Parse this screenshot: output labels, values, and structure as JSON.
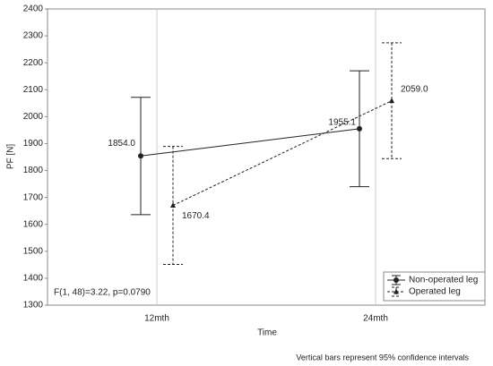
{
  "chart_data": {
    "type": "errorbar-line",
    "x_label": "Time",
    "y_label": "PF [N]",
    "categories": [
      "12mth",
      "24mth"
    ],
    "series": [
      {
        "name": "Non-operated leg",
        "color": "#222222",
        "line_style": "solid",
        "marker": "circle",
        "values": [
          1854.0,
          1955.1
        ],
        "value_labels": [
          "1854.0",
          "1955.1"
        ],
        "errors": [
          218,
          215
        ]
      },
      {
        "name": "Operated leg",
        "color": "#222222",
        "line_style": "dotted",
        "marker": "triangle",
        "values": [
          1670.4,
          2059.0
        ],
        "value_labels": [
          "1670.4",
          "2059.0"
        ],
        "errors": [
          219,
          215
        ]
      }
    ],
    "ylim": [
      1300,
      2400
    ],
    "yticks": [
      1300,
      1400,
      1500,
      1600,
      1700,
      1800,
      1900,
      2000,
      2100,
      2200,
      2300,
      2400
    ],
    "grid": "x",
    "legend_position": "lower right",
    "annotations": [
      "F(1, 48)=3.22, p=0.0790",
      "Vertical bars represent 95% confidence intervals"
    ]
  }
}
